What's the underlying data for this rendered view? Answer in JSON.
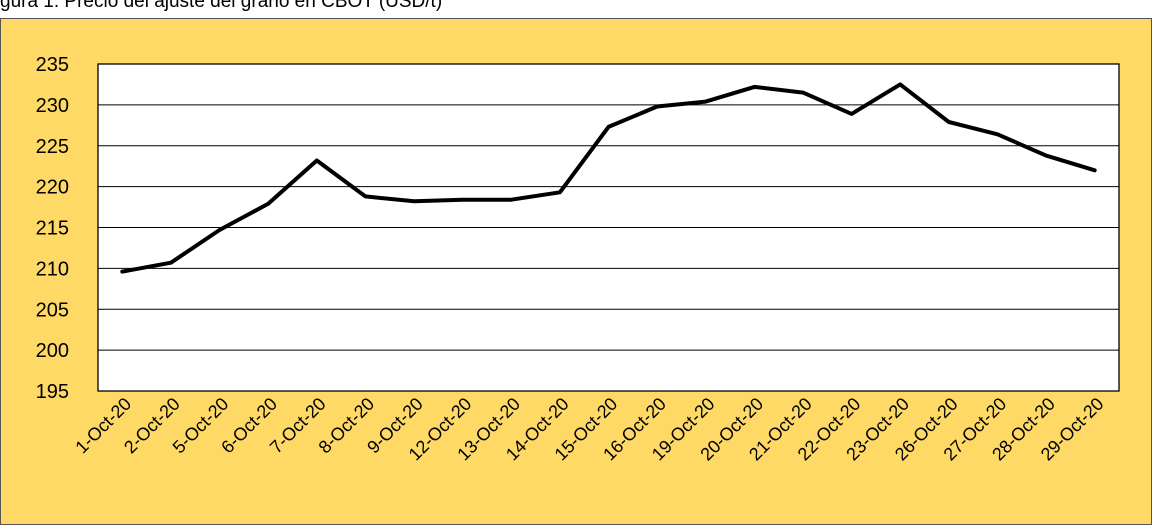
{
  "caption": "gura 1. Precio del ajuste del grano en CBOT (USD/t)",
  "colors": {
    "background": "#FFD966",
    "plot_area": "#FFFFFF",
    "line": "#000000",
    "grid": "#000000"
  },
  "chart_data": {
    "type": "line",
    "title": "",
    "xlabel": "",
    "ylabel": "",
    "ylim": [
      195,
      235
    ],
    "yticks": [
      195,
      200,
      205,
      210,
      215,
      220,
      225,
      230,
      235
    ],
    "grid": true,
    "legend": "none",
    "categories": [
      "1-Oct-20",
      "2-Oct-20",
      "5-Oct-20",
      "6-Oct-20",
      "7-Oct-20",
      "8-Oct-20",
      "9-Oct-20",
      "12-Oct-20",
      "13-Oct-20",
      "14-Oct-20",
      "15-Oct-20",
      "16-Oct-20",
      "19-Oct-20",
      "20-Oct-20",
      "21-Oct-20",
      "22-Oct-20",
      "23-Oct-20",
      "26-Oct-20",
      "27-Oct-20",
      "28-Oct-20",
      "29-Oct-20"
    ],
    "series": [
      {
        "values": [
          209.6,
          210.7,
          214.7,
          217.9,
          223.2,
          218.8,
          218.2,
          218.4,
          218.4,
          219.3,
          227.3,
          229.8,
          230.4,
          232.2,
          231.5,
          228.9,
          232.5,
          227.9,
          226.4,
          223.8,
          222.0
        ]
      }
    ]
  }
}
